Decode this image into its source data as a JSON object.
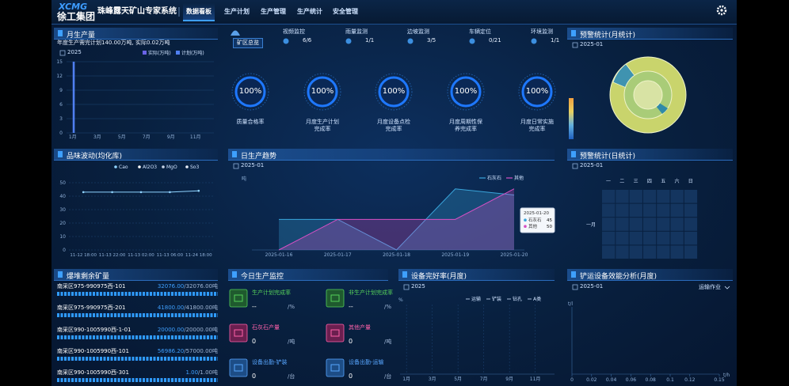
{
  "header": {
    "logo_en": "XCMG",
    "logo_cn": "徐工集团",
    "title": "珠峰露天矿山专家系统",
    "nav": [
      "数据看板",
      "生产计划",
      "生产管理",
      "生产统计",
      "安全管理"
    ]
  },
  "monthly_output": {
    "title": "月生产量",
    "summary": "年度生产需完计划140.00万吨, 实际0.02万吨",
    "date": "2025",
    "chart": {
      "type": "bar",
      "categories": [
        "1月",
        null,
        "3月",
        null,
        "5月",
        null,
        "7月",
        null,
        "9月",
        null,
        "11月",
        null
      ],
      "series": [
        {
          "name": "实际(万吨)",
          "color": "#6a63e6",
          "values": [
            0.02,
            0,
            0,
            0,
            0,
            0,
            0,
            0,
            0,
            0,
            0,
            0
          ]
        },
        {
          "name": "计划(万吨)",
          "color": "#4f7ff0",
          "values": [
            15,
            0,
            0,
            0,
            0,
            0,
            0,
            0,
            0,
            0,
            0,
            0
          ]
        }
      ],
      "ylim": [
        0,
        15
      ],
      "yticks": [
        0,
        3,
        6,
        9,
        12,
        15
      ]
    }
  },
  "quality": {
    "title": "品味波动(均化库)",
    "chart": {
      "type": "line",
      "categories": [
        "11-12 18:00",
        "11-13 22:00",
        "11-13 02:00",
        "11-13 06:00",
        "11-24 18:00"
      ],
      "series": [
        {
          "name": "Cao",
          "color": "#8fd3ff",
          "values": [
            43,
            43,
            43,
            43,
            44
          ]
        },
        {
          "name": "Al2O3",
          "color": "#ffffff",
          "values": [
            null,
            null,
            null,
            null,
            null
          ]
        },
        {
          "name": "MgO",
          "color": "#c8d4e8",
          "values": [
            null,
            null,
            null,
            null,
            null
          ]
        },
        {
          "name": "So3",
          "color": "#e8eef8",
          "values": [
            null,
            null,
            null,
            null,
            null
          ]
        }
      ],
      "ylim": [
        0,
        50
      ],
      "yticks": [
        0,
        10,
        20,
        30,
        40,
        50
      ]
    }
  },
  "overview": {
    "label": "矿区总览",
    "items": [
      {
        "name": "视频监控",
        "value": "6/6"
      },
      {
        "name": "雨量监测",
        "value": "1/1"
      },
      {
        "name": "边坡监测",
        "value": "3/5"
      },
      {
        "name": "车辆定位",
        "value": "0/21"
      },
      {
        "name": "环境监测",
        "value": "1/1"
      }
    ]
  },
  "kpis": [
    {
      "value": "100%",
      "label": "质量合格率"
    },
    {
      "value": "100%",
      "label": "月度生产计划完成率"
    },
    {
      "value": "100%",
      "label": "月度设备点检完成率"
    },
    {
      "value": "100%",
      "label": "月度周期性保养完成率"
    },
    {
      "value": "100%",
      "label": "月度日常实施完成率"
    }
  ],
  "daily_trend": {
    "title": "日生产趋势",
    "date": "2025-01",
    "chart": {
      "type": "area",
      "y_label": "吨",
      "categories": [
        "2025-01-16",
        "2025-01-17",
        "2025-01-18",
        "2025-01-19",
        "2025-01-20"
      ],
      "series": [
        {
          "name": "石灰石",
          "color": "#3aa6dc",
          "values": [
            25,
            25,
            0,
            50,
            45
          ]
        },
        {
          "name": "其他",
          "color": "#d650c4",
          "values": [
            0,
            25,
            25,
            25,
            50
          ]
        }
      ],
      "ylim": [
        0,
        55
      ]
    }
  },
  "warning_monthly": {
    "title": "预警统计(月统计)",
    "date": "2025-01"
  },
  "warning_daily": {
    "title": "预警统计(日统计)",
    "date": "2025-01",
    "weekdays": [
      "一",
      "二",
      "三",
      "四",
      "五",
      "六",
      "日"
    ],
    "month": "一月"
  },
  "stockpile": {
    "title": "爆堆剩余矿量",
    "rows": [
      {
        "name": "南采区975-990975西-101",
        "remaining": "32076.00",
        "total": "/32076.00吨"
      },
      {
        "name": "南采区975-990975西-201",
        "remaining": "41800.00",
        "total": "/41800.00吨"
      },
      {
        "name": "南采区990-1005990西-1-01",
        "remaining": "20000.00",
        "total": "/20000.00吨"
      },
      {
        "name": "南采区990-1005990西-101",
        "remaining": "56986.20",
        "total": "/57000.00吨"
      },
      {
        "name": "南采区990-1005990西-301",
        "remaining": "1.00",
        "total": "/1.00吨"
      }
    ]
  },
  "monitor": {
    "title": "今日生产监控",
    "items": [
      {
        "label": "生产计划完成率",
        "value": "--",
        "unit": "/%"
      },
      {
        "label": "非生产计划完成率",
        "value": "--",
        "unit": "/%"
      },
      {
        "label": "石灰石产量",
        "value": "0",
        "unit": "/吨"
      },
      {
        "label": "其他产量",
        "value": "0",
        "unit": "/吨"
      },
      {
        "label": "设备出勤-铲装",
        "value": "0",
        "unit": "/台"
      },
      {
        "label": "设备出勤-运输",
        "value": "0",
        "unit": "/台"
      }
    ]
  },
  "equipment_rate": {
    "title": "设备完好率(月度)",
    "date": "2025",
    "y_label": "%",
    "legend": [
      "运输",
      "铲装",
      "钻孔",
      "A类"
    ],
    "categories": [
      "1月",
      null,
      "3月",
      null,
      "5月",
      null,
      "7月",
      null,
      "9月",
      null,
      "11月",
      null
    ]
  },
  "efficiency": {
    "title": "铲运设备效能分析(月度)",
    "date": "2025-01",
    "dropdown": "运输作业",
    "y_label": "t/l",
    "x_label": "t/h",
    "xlim": [
      0,
      0.15
    ],
    "xticks": [
      0,
      0.02,
      0.04,
      0.06,
      0.08,
      0.1,
      0.12,
      0.15
    ]
  }
}
